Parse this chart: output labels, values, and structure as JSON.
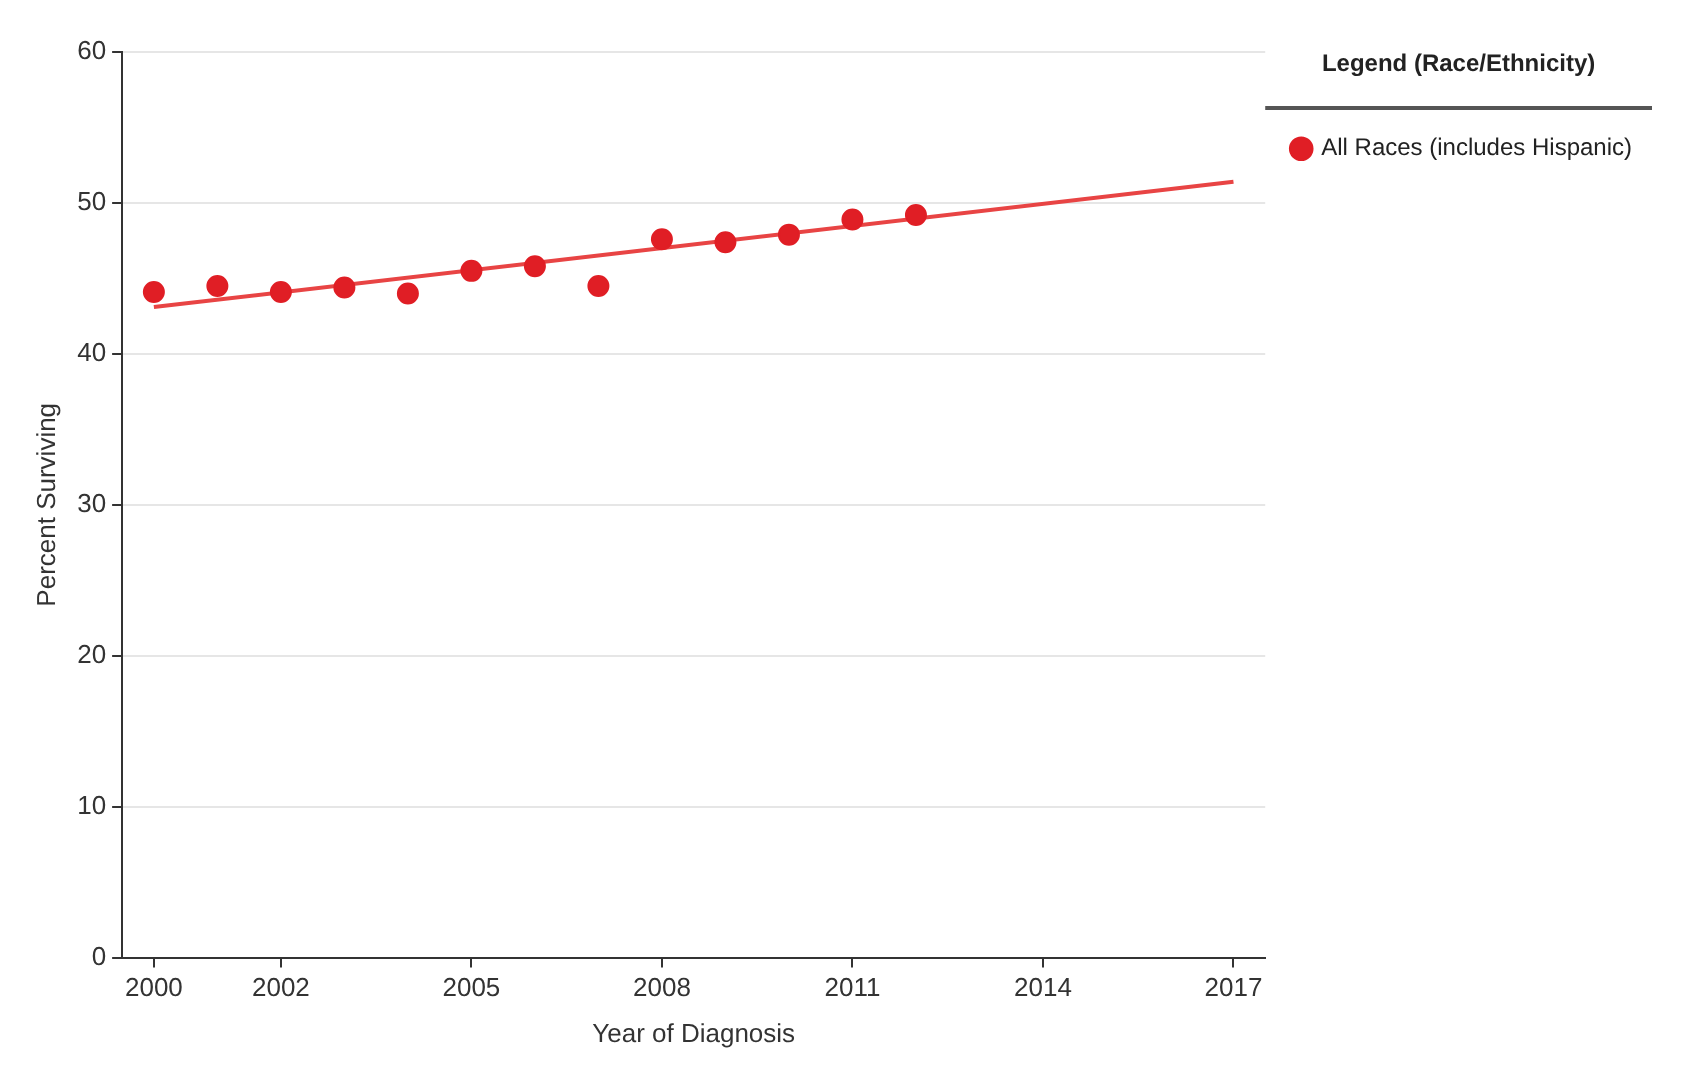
{
  "chart_data": {
    "type": "scatter",
    "xlabel": "Year of Diagnosis",
    "ylabel": "Percent Surviving",
    "legend_title": "Legend (Race/Ethnicity)",
    "x": [
      2000,
      2001,
      2002,
      2003,
      2004,
      2005,
      2006,
      2007,
      2008,
      2009,
      2010,
      2011,
      2012
    ],
    "series": [
      {
        "name": "All Races (includes Hispanic)",
        "color": "#e01e25",
        "values": [
          44.1,
          44.5,
          44.1,
          44.4,
          44.0,
          45.5,
          45.8,
          44.5,
          47.6,
          47.4,
          47.9,
          48.9,
          49.2
        ]
      },
      {
        "type": "line",
        "color": "#e84444",
        "x": [
          2000,
          2017
        ],
        "values": [
          43.1,
          51.4
        ],
        "marker": "none",
        "line_style": "solid"
      }
    ],
    "xlim": [
      1999.5,
      2017.5
    ],
    "xticks": [
      2000,
      2002,
      2005,
      2008,
      2011,
      2014,
      2017
    ],
    "ylim": [
      0,
      60
    ],
    "yticks": [
      0,
      10,
      20,
      30,
      40,
      50,
      60
    ],
    "grid": "y",
    "legend": "top right",
    "marker": "circle"
  }
}
